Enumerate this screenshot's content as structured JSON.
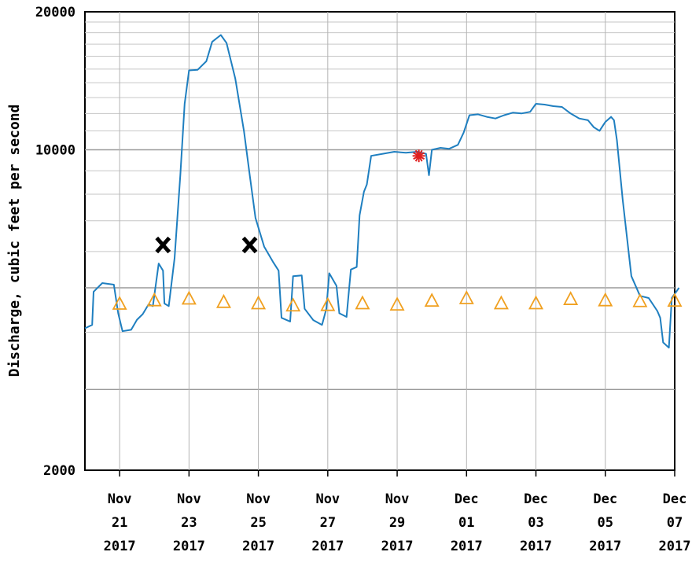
{
  "chart_data": {
    "type": "line",
    "title": "",
    "ylabel": "Discharge, cubic feet per second",
    "xlabel": "",
    "y_scale": "log",
    "ylim": [
      2000,
      20000
    ],
    "y_ticks": [
      {
        "value": 2000,
        "label": "2000"
      },
      {
        "value": 10000,
        "label": "10000"
      },
      {
        "value": 20000,
        "label": "20000"
      }
    ],
    "xlim": [
      "2017-11-20",
      "2017-12-07"
    ],
    "x_ticks": [
      {
        "date": "2017-11-21",
        "line1": "Nov",
        "line2": "21",
        "line3": "2017"
      },
      {
        "date": "2017-11-23",
        "line1": "Nov",
        "line2": "23",
        "line3": "2017"
      },
      {
        "date": "2017-11-25",
        "line1": "Nov",
        "line2": "25",
        "line3": "2017"
      },
      {
        "date": "2017-11-27",
        "line1": "Nov",
        "line2": "27",
        "line3": "2017"
      },
      {
        "date": "2017-11-29",
        "line1": "Nov",
        "line2": "29",
        "line3": "2017"
      },
      {
        "date": "2017-12-01",
        "line1": "Dec",
        "line2": "01",
        "line3": "2017"
      },
      {
        "date": "2017-12-03",
        "line1": "Dec",
        "line2": "03",
        "line3": "2017"
      },
      {
        "date": "2017-12-05",
        "line1": "Dec",
        "line2": "05",
        "line3": "2017"
      },
      {
        "date": "2017-12-07",
        "line1": "Dec",
        "line2": "07",
        "line3": "2017"
      }
    ],
    "grid": true,
    "colors": {
      "discharge": "#1f7fc0",
      "median": "#f0a020",
      "measurement": "#e02020",
      "marker_x": "#000000"
    },
    "series": [
      {
        "kind": "line",
        "points": [
          [
            "2017-11-20 00:00",
            4080
          ],
          [
            "2017-11-20 05:00",
            4150
          ],
          [
            "2017-11-20 06:00",
            4900
          ],
          [
            "2017-11-20 12:00",
            5120
          ],
          [
            "2017-11-20 20:00",
            5080
          ],
          [
            "2017-11-20 23:00",
            4400
          ],
          [
            "2017-11-21 02:00",
            4020
          ],
          [
            "2017-11-21 08:00",
            4050
          ],
          [
            "2017-11-21 12:00",
            4260
          ],
          [
            "2017-11-21 16:00",
            4380
          ],
          [
            "2017-11-21 20:00",
            4600
          ],
          [
            "2017-11-21 23:00",
            4560
          ],
          [
            "2017-11-22 03:00",
            5650
          ],
          [
            "2017-11-22 06:00",
            5450
          ],
          [
            "2017-11-22 07:00",
            4620
          ],
          [
            "2017-11-22 10:00",
            4560
          ],
          [
            "2017-11-22 14:00",
            5800
          ],
          [
            "2017-11-22 18:00",
            8800
          ],
          [
            "2017-11-22 21:00",
            12600
          ],
          [
            "2017-11-23 00:00",
            14900
          ],
          [
            "2017-11-23 06:00",
            14950
          ],
          [
            "2017-11-23 12:00",
            15600
          ],
          [
            "2017-11-23 16:00",
            17200
          ],
          [
            "2017-11-23 22:00",
            17800
          ],
          [
            "2017-11-24 02:00",
            17100
          ],
          [
            "2017-11-24 08:00",
            14300
          ],
          [
            "2017-11-24 14:00",
            11000
          ],
          [
            "2017-11-24 18:00",
            8800
          ],
          [
            "2017-11-24 22:00",
            7100
          ],
          [
            "2017-11-25 04:00",
            6150
          ],
          [
            "2017-11-25 10:00",
            5700
          ],
          [
            "2017-11-25 14:00",
            5450
          ],
          [
            "2017-11-25 16:00",
            4300
          ],
          [
            "2017-11-25 22:00",
            4220
          ],
          [
            "2017-11-26 00:00",
            5300
          ],
          [
            "2017-11-26 06:00",
            5320
          ],
          [
            "2017-11-26 08:00",
            4500
          ],
          [
            "2017-11-26 14:00",
            4250
          ],
          [
            "2017-11-26 20:00",
            4150
          ],
          [
            "2017-11-26 23:00",
            4500
          ],
          [
            "2017-11-27 01:00",
            5380
          ],
          [
            "2017-11-27 06:00",
            5050
          ],
          [
            "2017-11-27 08:00",
            4400
          ],
          [
            "2017-11-27 13:00",
            4320
          ],
          [
            "2017-11-27 16:00",
            5480
          ],
          [
            "2017-11-27 20:00",
            5550
          ],
          [
            "2017-11-27 22:00",
            7200
          ],
          [
            "2017-11-28 01:00",
            8100
          ],
          [
            "2017-11-28 03:00",
            8400
          ],
          [
            "2017-11-28 06:00",
            9700
          ],
          [
            "2017-11-28 14:00",
            9800
          ],
          [
            "2017-11-28 22:00",
            9900
          ],
          [
            "2017-11-29 06:00",
            9850
          ],
          [
            "2017-11-29 14:00",
            9900
          ],
          [
            "2017-11-29 20:00",
            9800
          ],
          [
            "2017-11-29 22:00",
            8800
          ],
          [
            "2017-11-30 00:00",
            10000
          ],
          [
            "2017-11-30 06:00",
            10100
          ],
          [
            "2017-11-30 12:00",
            10050
          ],
          [
            "2017-11-30 18:00",
            10250
          ],
          [
            "2017-11-30 22:00",
            10900
          ],
          [
            "2017-12-01 02:00",
            11900
          ],
          [
            "2017-12-01 08:00",
            11950
          ],
          [
            "2017-12-01 14:00",
            11800
          ],
          [
            "2017-12-01 20:00",
            11700
          ],
          [
            "2017-12-02 02:00",
            11900
          ],
          [
            "2017-12-02 08:00",
            12050
          ],
          [
            "2017-12-02 14:00",
            12000
          ],
          [
            "2017-12-02 20:00",
            12100
          ],
          [
            "2017-12-03 00:00",
            12600
          ],
          [
            "2017-12-03 06:00",
            12550
          ],
          [
            "2017-12-03 12:00",
            12450
          ],
          [
            "2017-12-03 18:00",
            12400
          ],
          [
            "2017-12-04 00:00",
            12000
          ],
          [
            "2017-12-04 06:00",
            11700
          ],
          [
            "2017-12-04 12:00",
            11600
          ],
          [
            "2017-12-04 16:00",
            11200
          ],
          [
            "2017-12-04 20:00",
            11000
          ],
          [
            "2017-12-05 00:00",
            11500
          ],
          [
            "2017-12-05 04:00",
            11800
          ],
          [
            "2017-12-05 06:00",
            11600
          ],
          [
            "2017-12-05 08:00",
            10500
          ],
          [
            "2017-12-05 12:00",
            7800
          ],
          [
            "2017-12-05 18:00",
            5300
          ],
          [
            "2017-12-06 00:00",
            4800
          ],
          [
            "2017-12-06 06:00",
            4750
          ],
          [
            "2017-12-06 12:00",
            4450
          ],
          [
            "2017-12-06 14:00",
            4300
          ],
          [
            "2017-12-06 16:00",
            3800
          ],
          [
            "2017-12-06 20:00",
            3700
          ],
          [
            "2017-12-06 22:00",
            4750
          ],
          [
            "2017-12-07 03:00",
            5000
          ]
        ]
      },
      {
        "kind": "triangle-markers",
        "points": [
          [
            "2017-11-21 00:00",
            4620
          ],
          [
            "2017-11-22 00:00",
            4700
          ],
          [
            "2017-11-23 00:00",
            4740
          ],
          [
            "2017-11-24 00:00",
            4660
          ],
          [
            "2017-11-25 00:00",
            4630
          ],
          [
            "2017-11-26 00:00",
            4580
          ],
          [
            "2017-11-27 00:00",
            4590
          ],
          [
            "2017-11-28 00:00",
            4630
          ],
          [
            "2017-11-29 00:00",
            4600
          ],
          [
            "2017-11-30 00:00",
            4690
          ],
          [
            "2017-12-01 00:00",
            4750
          ],
          [
            "2017-12-02 00:00",
            4630
          ],
          [
            "2017-12-03 00:00",
            4630
          ],
          [
            "2017-12-04 00:00",
            4730
          ],
          [
            "2017-12-05 00:00",
            4700
          ],
          [
            "2017-12-06 00:00",
            4680
          ],
          [
            "2017-12-07 00:00",
            4690
          ]
        ]
      },
      {
        "kind": "x-markers",
        "points": [
          [
            "2017-11-22 06:00",
            6200
          ],
          [
            "2017-11-24 18:00",
            6200
          ]
        ]
      },
      {
        "kind": "star-marker",
        "points": [
          [
            "2017-11-29 15:00",
            9700
          ]
        ]
      }
    ]
  }
}
